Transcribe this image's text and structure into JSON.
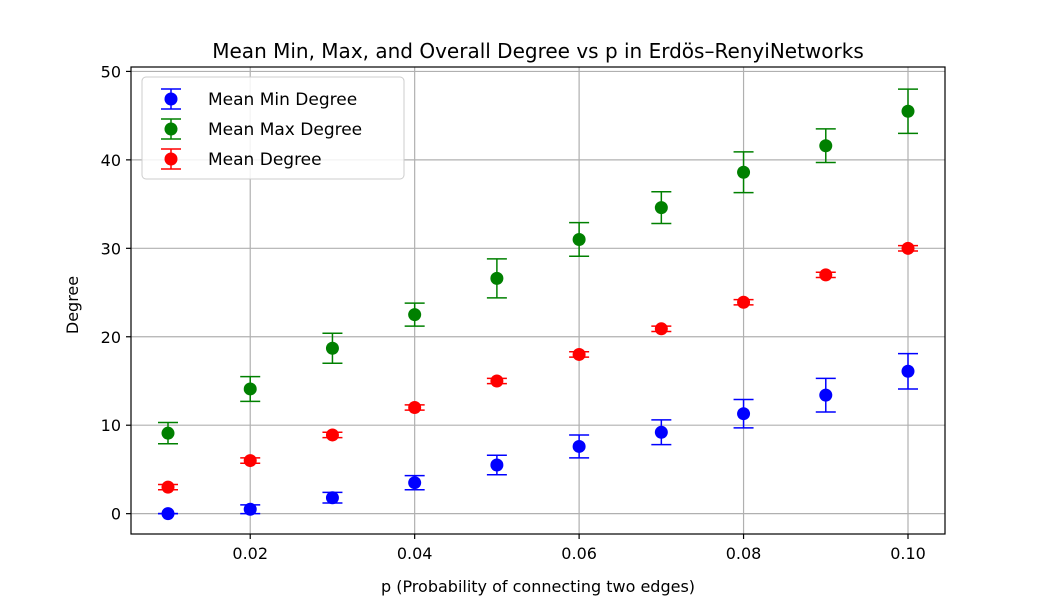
{
  "chart_data": {
    "type": "scatter",
    "title": "Mean Min, Max, and Overall Degree vs p in Erdös–RenyiNetworks",
    "xlabel": "p (Probability of connecting two edges)",
    "ylabel": "Degree",
    "x": [
      0.01,
      0.02,
      0.03,
      0.04,
      0.05,
      0.06,
      0.07,
      0.08,
      0.09,
      0.1
    ],
    "xlim": [
      0.0055,
      0.1045
    ],
    "ylim": [
      -2.3,
      50.5
    ],
    "xticks": [
      0.02,
      0.04,
      0.06,
      0.08,
      0.1
    ],
    "xtick_labels": [
      "0.02",
      "0.04",
      "0.06",
      "0.08",
      "0.10"
    ],
    "yticks": [
      0,
      10,
      20,
      30,
      40,
      50
    ],
    "ytick_labels": [
      "0",
      "10",
      "20",
      "30",
      "40",
      "50"
    ],
    "grid": true,
    "legend_position": "top-left",
    "series": [
      {
        "name": "Mean Min Degree",
        "color": "#0000ff",
        "values": [
          0.0,
          0.5,
          1.8,
          3.5,
          5.5,
          7.6,
          9.2,
          11.3,
          13.4,
          16.1
        ],
        "errors": [
          0.0,
          0.5,
          0.6,
          0.8,
          1.1,
          1.3,
          1.4,
          1.6,
          1.9,
          2.0
        ]
      },
      {
        "name": "Mean Max Degree",
        "color": "#008000",
        "values": [
          9.1,
          14.1,
          18.7,
          22.5,
          26.6,
          31.0,
          34.6,
          38.6,
          41.6,
          45.5
        ],
        "errors": [
          1.2,
          1.4,
          1.7,
          1.3,
          2.2,
          1.9,
          1.8,
          2.3,
          1.9,
          2.5
        ]
      },
      {
        "name": "Mean Degree",
        "color": "#ff0000",
        "values": [
          3.0,
          6.0,
          8.9,
          12.0,
          15.0,
          18.0,
          20.9,
          23.9,
          27.0,
          30.0
        ],
        "errors": [
          0.3,
          0.3,
          0.3,
          0.3,
          0.3,
          0.3,
          0.3,
          0.3,
          0.3,
          0.3
        ]
      }
    ]
  }
}
